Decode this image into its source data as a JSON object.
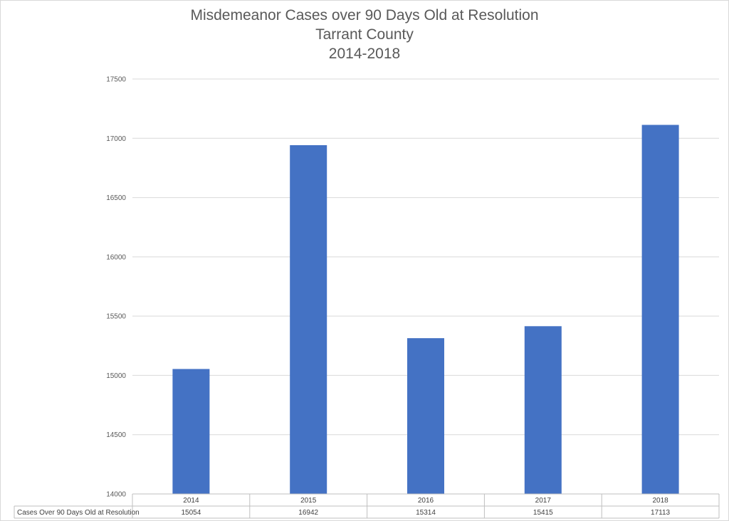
{
  "title_lines": [
    "Misdemeanor Cases over 90 Days Old at Resolution",
    "Tarrant County",
    "2014-2018"
  ],
  "colors": {
    "bar": "#4472C4",
    "grid": "#d9d9d9",
    "text": "#595959"
  },
  "chart_data": {
    "type": "bar",
    "title": "Misdemeanor Cases over 90 Days Old at Resolution Tarrant County 2014-2018",
    "categories": [
      "2014",
      "2015",
      "2016",
      "2017",
      "2018"
    ],
    "series": [
      {
        "name": "Cases Over 90 Days Old at Resolution",
        "values": [
          15054,
          16942,
          15314,
          15415,
          17113
        ]
      }
    ],
    "ylim": [
      14000,
      17500
    ],
    "yticks": [
      14000,
      14500,
      15000,
      15500,
      16000,
      16500,
      17000,
      17500
    ],
    "xlabel": "",
    "ylabel": "",
    "grid": true,
    "legend": "data-table"
  }
}
